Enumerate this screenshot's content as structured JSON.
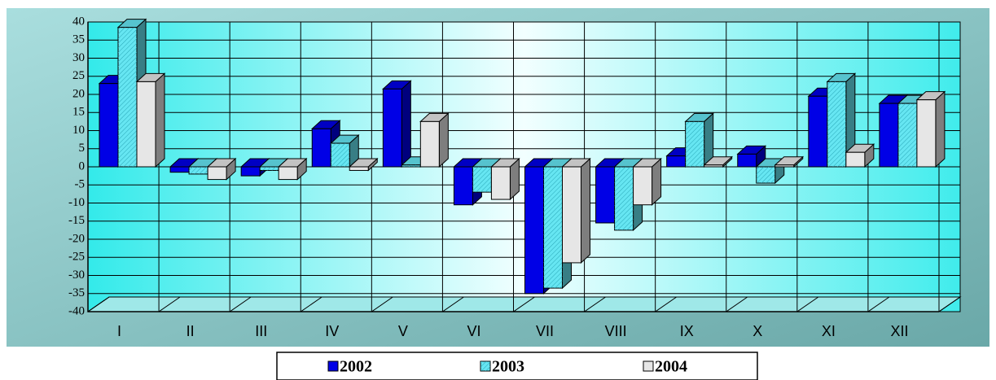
{
  "chart_data": {
    "type": "bar3d",
    "categories": [
      "I",
      "II",
      "III",
      "IV",
      "V",
      "VI",
      "VII",
      "VIII",
      "IX",
      "X",
      "XI",
      "XII"
    ],
    "series": [
      {
        "name": "2002",
        "color": "#0000e6",
        "values": [
          23,
          -1.5,
          -2.5,
          10.5,
          21.5,
          -10.5,
          -35,
          -15.5,
          3,
          3.5,
          19.5,
          17.5
        ]
      },
      {
        "name": "2003",
        "color": "#66e6f2",
        "values": [
          38.5,
          -2,
          -1,
          6.5,
          0.5,
          -7,
          -33.5,
          -17.5,
          12.5,
          -4.5,
          23.5,
          17.5
        ]
      },
      {
        "name": "2004",
        "color": "#e6e6e6",
        "values": [
          23.5,
          -3.5,
          -3.5,
          -1,
          12.5,
          -9,
          -26.5,
          -10.5,
          0.5,
          0.5,
          4,
          18.5
        ]
      }
    ],
    "ylim": [
      -40,
      40
    ],
    "yticks": [
      40,
      35,
      30,
      25,
      20,
      15,
      10,
      5,
      0,
      -5,
      -10,
      -15,
      -20,
      -25,
      -30,
      -35,
      -40
    ],
    "grid": true,
    "legend": "bottom"
  }
}
